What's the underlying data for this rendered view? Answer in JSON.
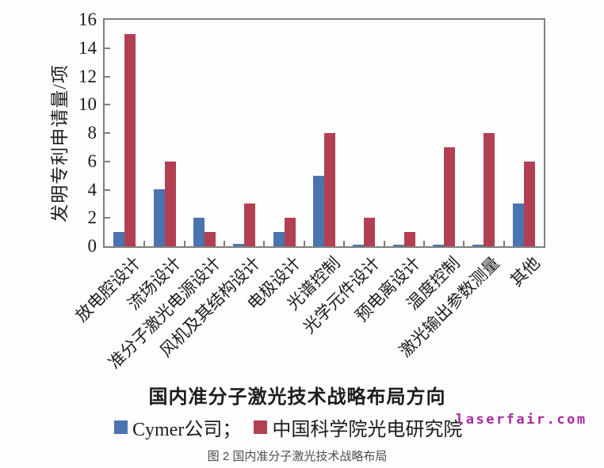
{
  "chart_data": {
    "type": "bar",
    "title": "",
    "categories": [
      "放电腔设计",
      "流场设计",
      "准分子激光电源设计",
      "风机及其结构设计",
      "电极设计",
      "光谱控制",
      "光学元件设计",
      "预电离设计",
      "温度控制",
      "激光输出参数测量",
      "其他"
    ],
    "series": [
      {
        "name": "Cymer公司",
        "color": "#4a74b0",
        "values": [
          1,
          4,
          2,
          0.15,
          1,
          5,
          0.1,
          0.1,
          0.1,
          0.1,
          3
        ]
      },
      {
        "name": "中国科学院光电研究院",
        "color": "#b24052",
        "values": [
          15,
          6,
          1,
          3,
          2,
          8,
          2,
          1,
          7,
          8,
          6
        ]
      }
    ],
    "xlabel": "国内准分子激光技术战略布局方向",
    "ylabel": "发明专利申请量/项",
    "ylim": [
      0,
      16
    ],
    "yticks": [
      0,
      2,
      4,
      6,
      8,
      10,
      12,
      14,
      16
    ],
    "grid": false,
    "legend_position": "bottom",
    "legend_labels": [
      "Cymer公司；",
      "中国科学院光电研究院"
    ],
    "axis_color": "#7e7e7e"
  },
  "watermark": {
    "text": "laserfair.com",
    "color": "#a62a9e"
  },
  "caption": "图 2 国内准分子激光技术战略布局"
}
